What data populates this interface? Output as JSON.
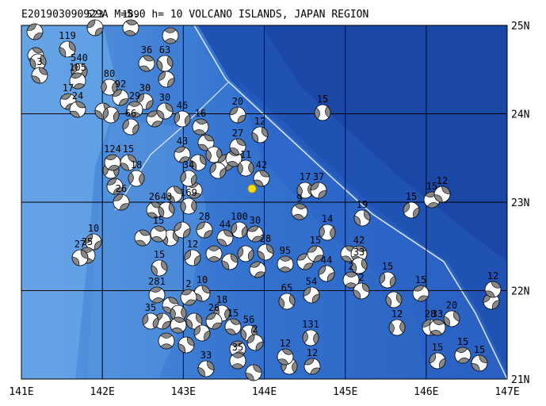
{
  "title": "E201903090929A M=5.0 h= 10 VOLCANO ISLANDS, JAPAN REGION",
  "x_axis_labels": [
    "141E",
    "142E",
    "143E",
    "144E",
    "145E",
    "146E",
    "147E"
  ],
  "y_axis_labels": [
    "25N",
    "24N",
    "23N",
    "22N",
    "21N"
  ],
  "event_labels": [
    "523",
    "189",
    "119",
    "540",
    "105",
    "3",
    "80",
    "92",
    "36",
    "63",
    "30",
    "29",
    "30",
    "46",
    "17",
    "24",
    "15",
    "20",
    "16",
    "12",
    "66",
    "124",
    "15",
    "18",
    "26",
    "26",
    "43",
    "10",
    "25",
    "27",
    "34",
    "43",
    "42",
    "17",
    "37",
    "9",
    "19",
    "15",
    "15",
    "12",
    "14",
    "15",
    "42",
    "33",
    "44",
    "2",
    "2",
    "15",
    "15",
    "12",
    "12",
    "28",
    "33",
    "20",
    "15",
    "15",
    "15",
    "131",
    "12",
    "12",
    "65",
    "54",
    "95",
    "28",
    "100",
    "30",
    "44",
    "169",
    "28",
    "15",
    "15",
    "12",
    "281",
    "10",
    "18",
    "26",
    "15",
    "56",
    "2",
    "35",
    "33",
    "35",
    "2",
    "27",
    "11"
  ]
}
